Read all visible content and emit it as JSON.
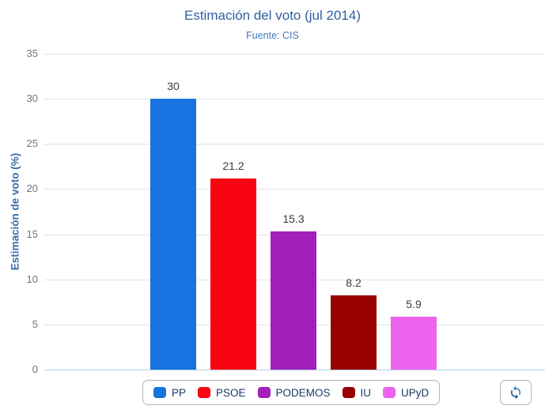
{
  "header": {
    "title": "Estimación del voto (jul 2014)",
    "subtitle": "Fuente: CIS"
  },
  "chart_data": {
    "type": "bar",
    "title": "Estimación del voto (jul 2014)",
    "subtitle": "Fuente: CIS",
    "categories": [
      "PP",
      "PSOE",
      "PODEMOS",
      "IU",
      "UPyD"
    ],
    "values": [
      30,
      21.2,
      15.3,
      8.2,
      5.9
    ],
    "value_labels": [
      "30",
      "21.2",
      "15.3",
      "8.2",
      "5.9"
    ],
    "bar_colors": [
      "#1673E0",
      "#F90511",
      "#A21FB9",
      "#980000",
      "#EC63F0"
    ],
    "xlabel": "",
    "ylabel": "Estimación de voto (%)",
    "ylim": [
      0,
      35
    ],
    "yticks": [
      0,
      5,
      10,
      15,
      20,
      25,
      30,
      35
    ],
    "grid": true,
    "legend_position": "bottom",
    "legend_entries": [
      "PP",
      "PSOE",
      "PODEMOS",
      "IU",
      "UPyD"
    ]
  },
  "colors": {
    "title": "#2d5fa0",
    "subtitle": "#4379bd",
    "axis_title": "#3a6cab",
    "tick_label": "#6d7680",
    "value_label": "#3b3b3b",
    "gridline": "#e2e2e2",
    "zero_line": "#b5cfe4",
    "legend_text": "#1b3966"
  },
  "toolbar": {
    "refresh_icon": "circular-arrows-refresh"
  }
}
